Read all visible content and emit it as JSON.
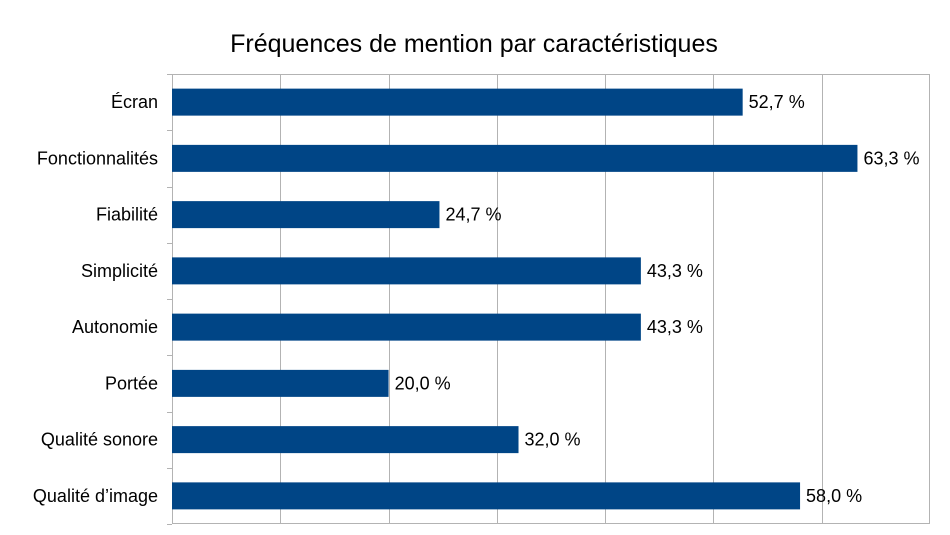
{
  "chart_data": {
    "type": "bar",
    "orientation": "horizontal",
    "title": "Fréquences de mention par caractéristiques",
    "xlabel": "",
    "ylabel": "",
    "xlim": [
      0,
      70
    ],
    "grid": true,
    "legend": "none",
    "bar_color": "#004586",
    "categories": [
      "Écran",
      "Fonctionnalités",
      "Fiabilité",
      "Simplicité",
      "Autonomie",
      "Portée",
      "Qualité sonore",
      "Qualité d’image"
    ],
    "values": [
      52.7,
      63.3,
      24.7,
      43.3,
      43.3,
      20.0,
      32.0,
      58.0
    ],
    "value_labels": [
      "52,7 %",
      "63,3 %",
      "24,7 %",
      "43,3 %",
      "43,3 %",
      "20,0 %",
      "32,0 %",
      "58,0 %"
    ]
  }
}
